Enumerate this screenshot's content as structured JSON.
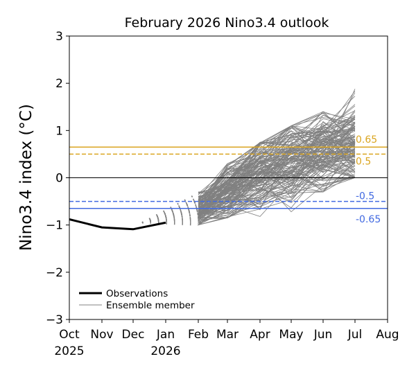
{
  "chart_data": {
    "type": "line",
    "title": "February 2026 Nino3.4 outlook",
    "ylabel": "Nino3.4 index (°C)",
    "xlabel": "",
    "ylim": [
      -3,
      3
    ],
    "yticks": [
      "3",
      "2",
      "1",
      "0",
      "−1",
      "−2",
      "−3"
    ],
    "ytick_values": [
      3,
      2,
      1,
      0,
      -1,
      -2,
      -3
    ],
    "xticks": [
      {
        "label": "Oct",
        "year": "2025"
      },
      {
        "label": "Nov",
        "year": ""
      },
      {
        "label": "Dec",
        "year": ""
      },
      {
        "label": "Jan",
        "year": "2026"
      },
      {
        "label": "Feb",
        "year": ""
      },
      {
        "label": "Mar",
        "year": ""
      },
      {
        "label": "Apr",
        "year": ""
      },
      {
        "label": "May",
        "year": ""
      },
      {
        "label": "Jun",
        "year": ""
      },
      {
        "label": "Jul",
        "year": ""
      },
      {
        "label": "Aug",
        "year": ""
      }
    ],
    "grid": false,
    "legend_placement": "lower-left",
    "series": [
      {
        "name": "Observations",
        "color": "#000000",
        "x": [
          "Oct",
          "Nov",
          "Dec",
          "Jan"
        ],
        "values": [
          -0.88,
          -1.05,
          -1.09,
          -0.95
        ]
      },
      {
        "name": "Ensemble member",
        "color": "#808080",
        "x": [
          "Feb",
          "Mar",
          "Apr",
          "May",
          "Jun",
          "Jul"
        ],
        "mean": [
          -0.68,
          -0.3,
          0.1,
          0.35,
          0.55,
          0.7
        ],
        "min": [
          -1.0,
          -0.85,
          -0.82,
          -0.72,
          -0.3,
          0.0
        ],
        "max": [
          -0.25,
          0.3,
          0.75,
          1.1,
          1.4,
          1.97
        ]
      }
    ],
    "reference_lines": [
      {
        "value": 0.65,
        "label": "0.65",
        "color": "#DAA520",
        "style": "solid"
      },
      {
        "value": 0.5,
        "label": "0.5",
        "color": "#DAA520",
        "style": "dashed"
      },
      {
        "value": 0,
        "label": "",
        "color": "#000000",
        "style": "solid"
      },
      {
        "value": -0.5,
        "label": "-0.5",
        "color": "#4169E1",
        "style": "dashed"
      },
      {
        "value": -0.65,
        "label": "-0.65",
        "color": "#4169E1",
        "style": "solid"
      }
    ]
  }
}
